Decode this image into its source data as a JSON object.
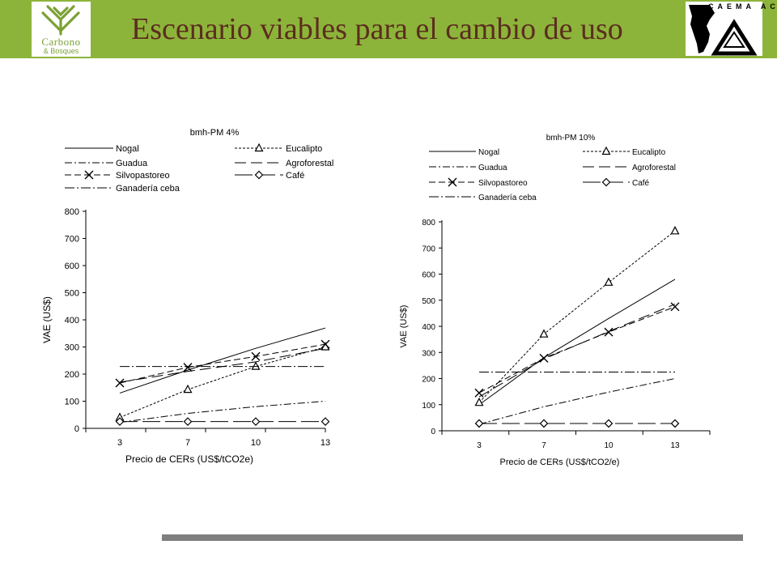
{
  "header": {
    "title": "Escenario viables para el cambio de uso",
    "logo_left": {
      "line1": "Carbono",
      "line2": "& Bosques"
    },
    "logo_right": {
      "caption": "CAEMA ACEE"
    }
  },
  "colors": {
    "header_bg": "#8db43a",
    "title": "#5b2d1f",
    "footer_bar": "#7f7f7f"
  },
  "chart_data": [
    {
      "type": "line",
      "title": "bmh-PM 4%",
      "xlabel": "Precio de CERs (US$/tCO2e)",
      "ylabel": "VAE (US$)",
      "categories": [
        "3",
        "7",
        "10",
        "13"
      ],
      "ylim": [
        0,
        800
      ],
      "yticks": [
        0,
        100,
        200,
        300,
        400,
        500,
        600,
        700,
        800
      ],
      "legend": "top",
      "series": [
        {
          "name": "Nogal",
          "values": [
            130,
            215,
            295,
            370
          ]
        },
        {
          "name": "Eucalipto",
          "values": [
            40,
            143,
            228,
            300
          ]
        },
        {
          "name": "Guadua",
          "values": [
            22,
            55,
            80,
            100
          ]
        },
        {
          "name": "Agroforestal",
          "values": [
            170,
            210,
            245,
            295
          ]
        },
        {
          "name": "Silvopastoreo",
          "values": [
            167,
            225,
            265,
            310
          ]
        },
        {
          "name": "Café",
          "values": [
            25,
            25,
            25,
            25
          ]
        },
        {
          "name": "Ganadería ceba",
          "values": [
            228,
            228,
            228,
            228
          ]
        }
      ]
    },
    {
      "type": "line",
      "title": "bmh-PM 10%",
      "xlabel": "Precio de CERs (US$/tCO2/e)",
      "ylabel": "VAE (US$)",
      "categories": [
        "3",
        "7",
        "10",
        "13"
      ],
      "ylim": [
        0,
        800
      ],
      "yticks": [
        0,
        100,
        200,
        300,
        400,
        500,
        600,
        700,
        800
      ],
      "legend": "top",
      "series": [
        {
          "name": "Nogal",
          "values": [
            100,
            280,
            430,
            580
          ]
        },
        {
          "name": "Eucalipto",
          "values": [
            108,
            370,
            568,
            765
          ]
        },
        {
          "name": "Guadua",
          "values": [
            25,
            92,
            148,
            200
          ]
        },
        {
          "name": "Agroforestal",
          "values": [
            130,
            275,
            380,
            485
          ]
        },
        {
          "name": "Silvopastoreo",
          "values": [
            145,
            278,
            378,
            475
          ]
        },
        {
          "name": "Café",
          "values": [
            28,
            28,
            28,
            28
          ]
        },
        {
          "name": "Ganadería ceba",
          "values": [
            225,
            225,
            225,
            225
          ]
        }
      ]
    }
  ]
}
